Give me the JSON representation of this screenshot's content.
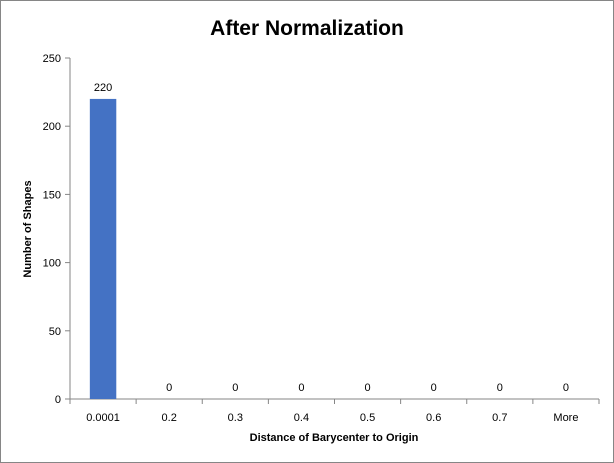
{
  "chart_data": {
    "type": "bar",
    "title": "After Normalization",
    "xlabel": "Distance  of Barycenter  to Origin",
    "ylabel": "Number of Shapes",
    "categories": [
      "0.0001",
      "0.2",
      "0.3",
      "0.4",
      "0.5",
      "0.6",
      "0.7",
      "More"
    ],
    "values": [
      220,
      0,
      0,
      0,
      0,
      0,
      0,
      0
    ],
    "ylim": [
      0,
      250
    ],
    "yticks": [
      0,
      50,
      100,
      150,
      200,
      250
    ],
    "grid": false,
    "legend": "none",
    "bar_color": "#4472C4",
    "data_labels": true
  }
}
